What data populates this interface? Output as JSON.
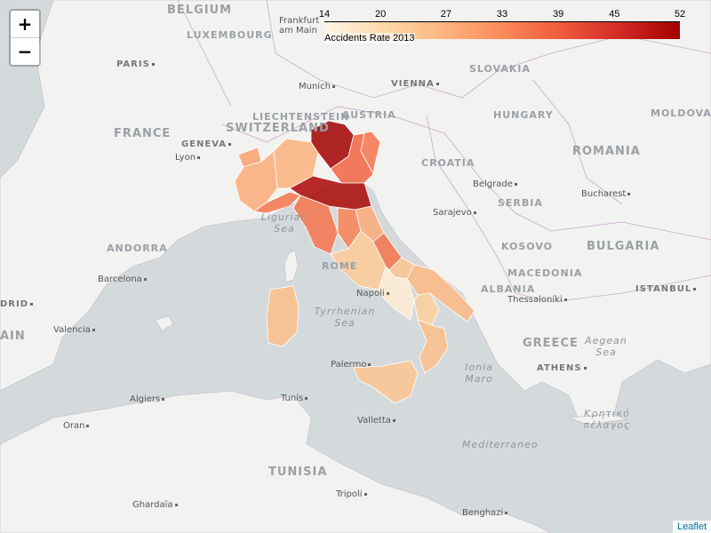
{
  "zoom": {
    "in_label": "+",
    "out_label": "−"
  },
  "legend": {
    "title": "Accidents Rate 2013",
    "ticks": [
      "14",
      "20",
      "27",
      "33",
      "39",
      "45",
      "52"
    ],
    "min": 14,
    "max": 52,
    "colors": [
      "#fff5e6",
      "#fdd9a9",
      "#fcb580",
      "#fb8b5a",
      "#ef5a3c",
      "#d12a26",
      "#a30000"
    ]
  },
  "attribution": "Leaflet",
  "map_labels": {
    "countries": {
      "belgium": "BELGIUM",
      "luxembourg": "LUXEMBOURG",
      "france": "FRANCE",
      "liechtenstein": "LIECHTENSTEIN",
      "austria": "AUSTRIA",
      "switzerland": "SWITZERLAND",
      "hungary": "HUNGARY",
      "slovakia": "SLOVAKIA",
      "moldova": "MOLDOVA",
      "romania": "ROMANIA",
      "croatia": "CROATIA",
      "serbia": "SERBIA",
      "andorra": "ANDORRA",
      "kosovo": "KOSOVO",
      "bulgaria": "BULGARIA",
      "macedonia": "MACEDONIA",
      "albania": "ALBANIA",
      "greece": "GREECE",
      "tunisia": "TUNISIA",
      "rome": "ROME"
    },
    "cities": {
      "frankfurt": "Frankfurt am Main",
      "paris": "PARIS",
      "munich": "Munich",
      "vienna": "VIENNA",
      "geneva": "GENEVA",
      "lyon": "Lyon",
      "belgrade": "Belgrade",
      "bucharest": "Bucharest",
      "sarajevo": "Sarajevo",
      "barcelona": "Barcelona",
      "madrid": "DRID",
      "valencia": "Valencia",
      "napoli": "Napoli",
      "thessaloniki": "Thessaloníki",
      "istanbul": "ISTANBUL",
      "palermo": "Palermo",
      "athens": "ATHENS",
      "algiers": "Algiers",
      "tunis": "Tunis",
      "valletta": "Valletta",
      "oran": "Oran",
      "ghardaia": "Ghardaïa",
      "tripoli": "Tripoli",
      "benghazi": "Benghazi",
      "spain_edge": "AIN"
    },
    "seas": {
      "ligurian": "Ligurian Sea",
      "tyrrhenian": "Tyrrhenian Sea",
      "ionian": "Ionia Maro",
      "aegean": "Aegean Sea",
      "cretan": "Κρητικό πέλαγος",
      "mediterranean": "Mediterraneo"
    }
  },
  "regions": [
    {
      "name": "Valle d'Aosta",
      "rate": 30
    },
    {
      "name": "Piemonte",
      "rate": 28
    },
    {
      "name": "Lombardia",
      "rate": 27
    },
    {
      "name": "Trentino-Alto Adige",
      "rate": 52
    },
    {
      "name": "Veneto",
      "rate": 38
    },
    {
      "name": "Friuli-Venezia Giulia",
      "rate": 36
    },
    {
      "name": "Liguria",
      "rate": 36
    },
    {
      "name": "Emilia-Romagna",
      "rate": 51
    },
    {
      "name": "Toscana",
      "rate": 36
    },
    {
      "name": "Umbria",
      "rate": 34
    },
    {
      "name": "Marche",
      "rate": 28
    },
    {
      "name": "Lazio",
      "rate": 23
    },
    {
      "name": "Abruzzo",
      "rate": 36
    },
    {
      "name": "Molise",
      "rate": 24
    },
    {
      "name": "Campania",
      "rate": 16
    },
    {
      "name": "Puglia",
      "rate": 26
    },
    {
      "name": "Basilicata",
      "rate": 22
    },
    {
      "name": "Calabria",
      "rate": 25
    },
    {
      "name": "Sicilia",
      "rate": 24
    },
    {
      "name": "Sardegna",
      "rate": 25
    }
  ]
}
